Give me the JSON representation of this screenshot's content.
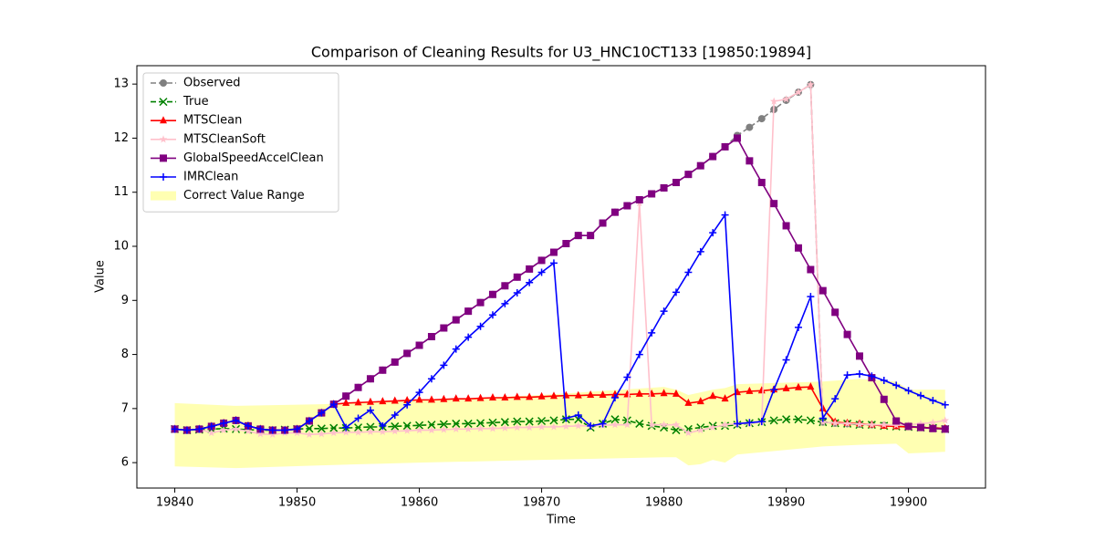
{
  "chart_data": {
    "type": "line",
    "title": "Comparison of Cleaning Results for U3_HNC10CT133 [19850:19894]",
    "x_label": "Time",
    "y_label": "Value",
    "x": [
      19840,
      19841,
      19842,
      19843,
      19844,
      19845,
      19846,
      19847,
      19848,
      19849,
      19850,
      19851,
      19852,
      19853,
      19854,
      19855,
      19856,
      19857,
      19858,
      19859,
      19860,
      19861,
      19862,
      19863,
      19864,
      19865,
      19866,
      19867,
      19868,
      19869,
      19870,
      19871,
      19872,
      19873,
      19874,
      19875,
      19876,
      19877,
      19878,
      19879,
      19880,
      19881,
      19882,
      19883,
      19884,
      19885,
      19886,
      19887,
      19888,
      19889,
      19890,
      19891,
      19892,
      19893,
      19894,
      19895,
      19896,
      19897,
      19898,
      19899,
      19900,
      19901,
      19902,
      19903
    ],
    "xlim": [
      19836.9,
      19906.3
    ],
    "ylim": [
      5.53,
      13.34
    ],
    "xticks": [
      19840,
      19850,
      19860,
      19870,
      19880,
      19890,
      19900
    ],
    "yticks": [
      6,
      7,
      8,
      9,
      10,
      11,
      12,
      13
    ],
    "legend": "upper left",
    "grid": false,
    "series": [
      {
        "name": "Observed",
        "color": "#808080",
        "marker": "circle",
        "linestyle": "dashed",
        "values": [
          6.62,
          6.6,
          6.62,
          6.67,
          6.73,
          6.78,
          6.68,
          6.62,
          6.6,
          6.6,
          6.62,
          6.77,
          6.92,
          7.08,
          7.23,
          7.39,
          7.55,
          7.71,
          7.86,
          8.02,
          8.17,
          8.33,
          8.49,
          8.64,
          8.8,
          8.96,
          9.11,
          9.27,
          9.43,
          9.58,
          9.74,
          9.89,
          10.05,
          10.2,
          10.2,
          10.43,
          10.63,
          10.75,
          10.86,
          10.97,
          11.08,
          11.18,
          11.33,
          11.49,
          11.66,
          11.84,
          12.05,
          12.2,
          12.36,
          12.53,
          12.7,
          12.85,
          12.99,
          6.75,
          6.73,
          6.72,
          6.71,
          6.7,
          6.69,
          6.68,
          6.67,
          6.66,
          6.65,
          6.63
        ]
      },
      {
        "name": "True",
        "color": "#008000",
        "marker": "x",
        "linestyle": "dashed",
        "values": [
          6.62,
          6.6,
          6.61,
          6.62,
          6.63,
          6.62,
          6.61,
          6.6,
          6.6,
          6.61,
          6.62,
          6.63,
          6.63,
          6.64,
          6.64,
          6.65,
          6.66,
          6.66,
          6.67,
          6.68,
          6.69,
          6.7,
          6.71,
          6.72,
          6.72,
          6.73,
          6.74,
          6.75,
          6.76,
          6.76,
          6.77,
          6.78,
          6.8,
          6.8,
          6.65,
          6.72,
          6.8,
          6.78,
          6.72,
          6.68,
          6.65,
          6.6,
          6.62,
          6.65,
          6.68,
          6.68,
          6.7,
          6.73,
          6.75,
          6.78,
          6.8,
          6.8,
          6.78,
          6.75,
          6.73,
          6.72,
          6.7,
          6.7,
          6.68,
          6.67,
          6.66,
          6.65,
          6.64,
          6.62
        ]
      },
      {
        "name": "MTSClean",
        "color": "#ff0000",
        "marker": "triangle",
        "linestyle": "solid",
        "values": [
          6.62,
          6.6,
          6.62,
          6.67,
          6.73,
          6.78,
          6.68,
          6.62,
          6.6,
          6.6,
          6.62,
          6.77,
          6.92,
          7.08,
          7.1,
          7.11,
          7.12,
          7.13,
          7.14,
          7.15,
          7.16,
          7.16,
          7.17,
          7.18,
          7.18,
          7.19,
          7.2,
          7.2,
          7.21,
          7.21,
          7.22,
          7.23,
          7.24,
          7.24,
          7.25,
          7.25,
          7.26,
          7.26,
          7.27,
          7.27,
          7.28,
          7.27,
          7.1,
          7.13,
          7.23,
          7.18,
          7.3,
          7.32,
          7.33,
          7.35,
          7.37,
          7.39,
          7.4,
          7.0,
          6.75,
          6.73,
          6.72,
          6.7,
          6.68,
          6.67,
          6.66,
          6.65,
          6.64,
          6.63
        ]
      },
      {
        "name": "MTSCleanSoft",
        "color": "#ffc0cb",
        "marker": "star",
        "linestyle": "solid",
        "values": [
          6.62,
          6.6,
          6.62,
          6.55,
          6.6,
          6.62,
          6.58,
          6.53,
          6.52,
          6.55,
          6.55,
          6.52,
          6.53,
          6.55,
          6.56,
          6.56,
          6.57,
          6.57,
          6.58,
          6.59,
          6.6,
          6.6,
          6.61,
          6.62,
          6.62,
          6.63,
          6.63,
          6.64,
          6.65,
          6.65,
          6.66,
          6.66,
          6.67,
          6.68,
          6.68,
          6.69,
          6.7,
          6.7,
          10.8,
          6.7,
          6.7,
          6.7,
          6.55,
          6.6,
          6.65,
          6.7,
          6.72,
          6.73,
          6.75,
          12.68,
          12.72,
          12.85,
          12.99,
          6.75,
          6.73,
          6.72,
          6.71,
          6.7,
          6.7,
          6.69,
          6.7,
          6.72,
          6.74,
          6.78
        ]
      },
      {
        "name": "GlobalSpeedAccelClean",
        "color": "#800080",
        "marker": "square",
        "linestyle": "solid",
        "values": [
          6.62,
          6.6,
          6.62,
          6.67,
          6.73,
          6.78,
          6.68,
          6.62,
          6.6,
          6.6,
          6.62,
          6.77,
          6.92,
          7.08,
          7.23,
          7.39,
          7.55,
          7.71,
          7.86,
          8.02,
          8.17,
          8.33,
          8.49,
          8.64,
          8.8,
          8.96,
          9.11,
          9.27,
          9.43,
          9.58,
          9.74,
          9.89,
          10.05,
          10.2,
          10.2,
          10.43,
          10.63,
          10.75,
          10.86,
          10.97,
          11.08,
          11.18,
          11.33,
          11.49,
          11.66,
          11.84,
          12.0,
          11.58,
          11.18,
          10.79,
          10.38,
          9.97,
          9.57,
          9.18,
          8.78,
          8.37,
          7.97,
          7.57,
          7.17,
          6.77,
          6.67,
          6.65,
          6.63,
          6.62
        ]
      },
      {
        "name": "IMRClean",
        "color": "#0000ff",
        "marker": "plus",
        "linestyle": "solid",
        "values": [
          6.62,
          6.6,
          6.62,
          6.67,
          6.73,
          6.78,
          6.68,
          6.62,
          6.6,
          6.6,
          6.62,
          6.77,
          6.92,
          7.08,
          6.65,
          6.82,
          6.97,
          6.68,
          6.88,
          7.07,
          7.3,
          7.55,
          7.8,
          8.1,
          8.32,
          8.52,
          8.73,
          8.94,
          9.14,
          9.33,
          9.52,
          9.69,
          6.82,
          6.88,
          6.68,
          6.72,
          7.2,
          7.58,
          8.0,
          8.4,
          8.8,
          9.15,
          9.52,
          9.9,
          10.25,
          10.58,
          6.72,
          6.74,
          6.76,
          7.35,
          7.9,
          8.5,
          9.07,
          6.82,
          7.18,
          7.62,
          7.64,
          7.6,
          7.52,
          7.43,
          7.33,
          7.24,
          7.15,
          7.07
        ]
      }
    ],
    "band": {
      "name": "Correct Value Range",
      "color": "#ffff00",
      "x": [
        19840,
        19845,
        19852,
        19860,
        19870,
        19880,
        19881,
        19882,
        19883,
        19884,
        19885,
        19886,
        19893,
        19896,
        19899,
        19900,
        19903
      ],
      "lower": [
        5.93,
        5.9,
        5.95,
        6.0,
        6.05,
        6.1,
        6.1,
        5.95,
        5.97,
        6.05,
        6.0,
        6.15,
        6.3,
        6.33,
        6.35,
        6.17,
        6.2
      ],
      "upper": [
        7.1,
        7.05,
        7.08,
        7.15,
        7.25,
        7.4,
        7.35,
        7.25,
        7.3,
        7.35,
        7.38,
        7.45,
        7.5,
        7.55,
        7.5,
        7.35,
        7.35
      ]
    }
  }
}
